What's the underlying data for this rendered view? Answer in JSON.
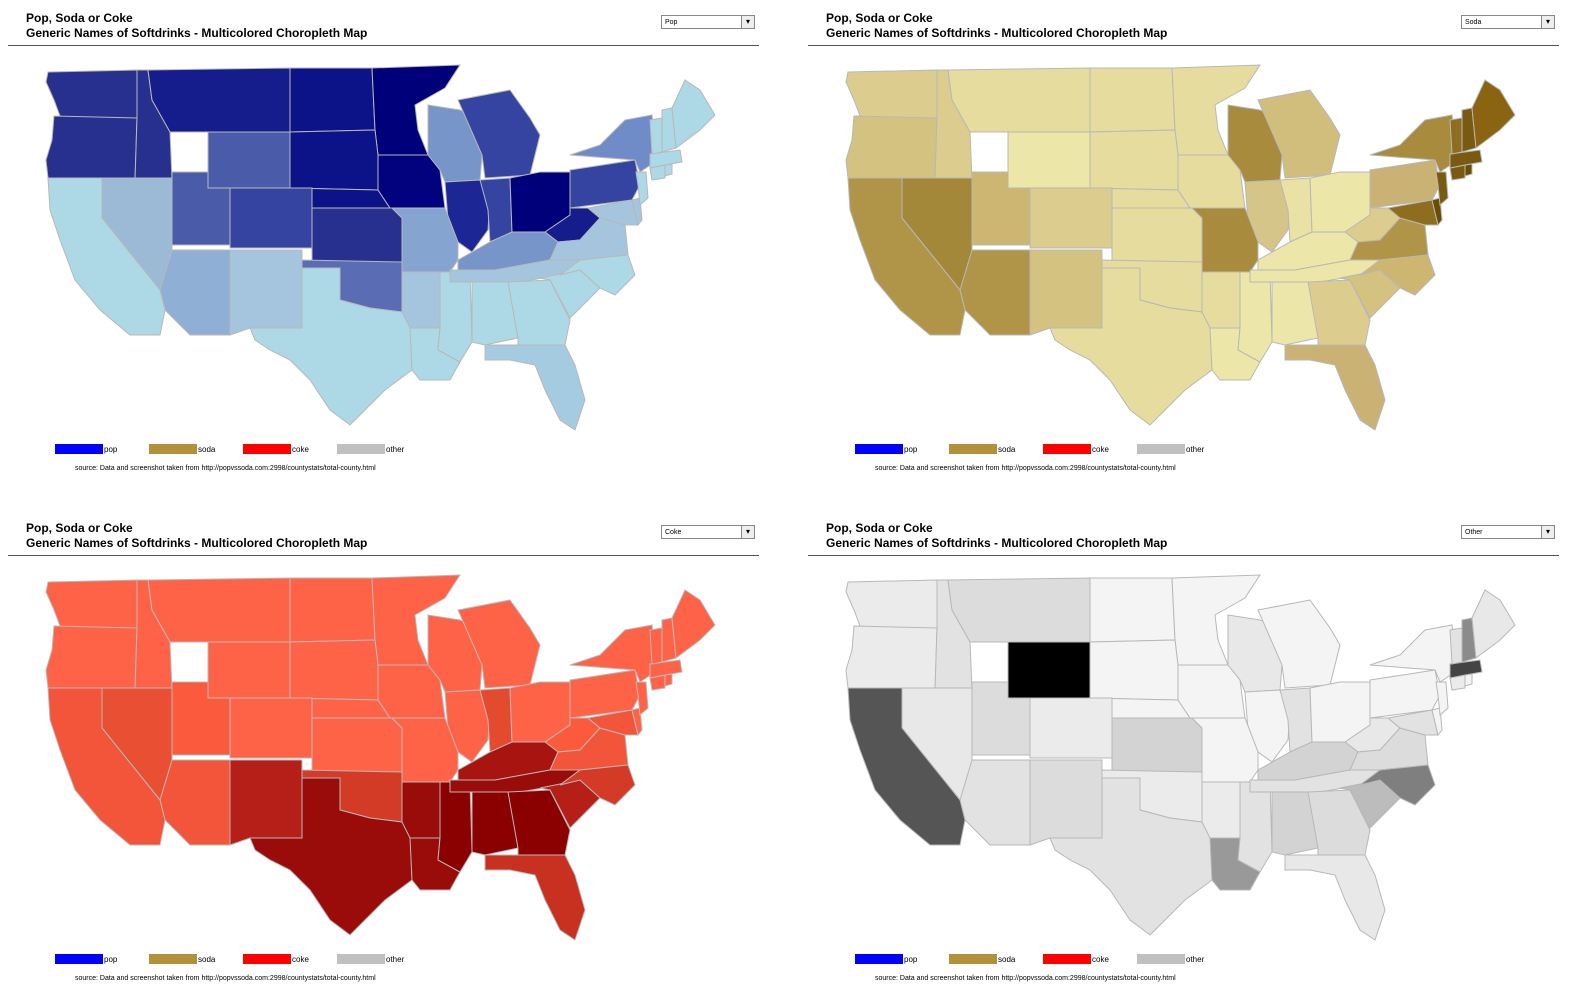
{
  "panels": [
    {
      "title_line1": "Pop, Soda or Coke",
      "title_line2": "Generic Names of Softdrinks - Multicolored Choropleth Map",
      "selected": "Pop",
      "legend": [
        {
          "label": "pop",
          "color": "#0000ff"
        },
        {
          "label": "soda",
          "color": "#b3913a"
        },
        {
          "label": "coke",
          "color": "#ff0000"
        },
        {
          "label": "other",
          "color": "#c0c0c0"
        }
      ],
      "source": "source:  Data and screenshot taken from http://popvssoda.com:2998/countystats/total-county.html",
      "states": {
        "WA": "#27308f",
        "OR": "#27308f",
        "ID": "#27308f",
        "MT": "#151c8c",
        "ND": "#0c1288",
        "MN": "#00007a",
        "SD": "#0c1288",
        "WY": "#4a5baa",
        "NE": "#0c1288",
        "IA": "#02027e",
        "WI": "#7795c8",
        "MI": "#3444a0",
        "UT": "#4a5baa",
        "CO": "#3444a0",
        "KS": "#27308f",
        "IL": "#1c2695",
        "IN": "#3444a0",
        "OH": "#00007a",
        "PA": "#3444a0",
        "NY": "#6f8bc8",
        "WV": "#151c8c",
        "NV": "#9cbad6",
        "AZ": "#90afd4",
        "NM": "#a4c5dd",
        "OK": "#5a6db4",
        "MO": "#86a4d0",
        "KY": "#7795c8",
        "VA": "#a4c5dd",
        "CA": "#add8e6",
        "TX": "#add8e6",
        "AR": "#a4c5dd",
        "LA": "#add8e6",
        "MS": "#add8e6",
        "AL": "#add8e6",
        "TN": "#a4c5dd",
        "GA": "#add8e6",
        "FL": "#a4cbe0",
        "SC": "#add8e6",
        "NC": "#add8e6",
        "MD": "#a4c5dd",
        "DE": "#a4c5dd",
        "NJ": "#add8e6",
        "CT": "#add8e6",
        "RI": "#add8e6",
        "MA": "#add8e6",
        "VT": "#add8e6",
        "NH": "#add8e6",
        "ME": "#add8e6"
      }
    },
    {
      "title_line1": "Pop, Soda or Coke",
      "title_line2": "Generic Names of Softdrinks - Multicolored Choropleth Map",
      "selected": "Soda",
      "legend": [
        {
          "label": "pop",
          "color": "#0000ff"
        },
        {
          "label": "soda",
          "color": "#b3913a"
        },
        {
          "label": "coke",
          "color": "#ff0000"
        },
        {
          "label": "other",
          "color": "#c0c0c0"
        }
      ],
      "source": "source:  Data and screenshot taken from http://popvssoda.com:2998/countystats/total-county.html",
      "states": {
        "WA": "#dccd8f",
        "OR": "#d4c280",
        "ID": "#dccd8f",
        "MT": "#e5dc9e",
        "ND": "#e5dc9e",
        "MN": "#e5dc9e",
        "SD": "#e5dc9e",
        "WY": "#ece6a8",
        "NE": "#e5dc9e",
        "IA": "#e5dc9e",
        "WI": "#a98b3e",
        "MI": "#d2be7c",
        "UT": "#cdb671",
        "CO": "#dccd8f",
        "KS": "#e5dc9e",
        "IL": "#d6c588",
        "IN": "#e9e2a4",
        "OH": "#ece6a8",
        "PA": "#c9b274",
        "NY": "#a98b3e",
        "WV": "#dccd8f",
        "NV": "#a3883a",
        "AZ": "#b09549",
        "NM": "#d4c280",
        "OK": "#e5dc9e",
        "MO": "#a98b3e",
        "KY": "#ece6a8",
        "VA": "#b09549",
        "CA": "#b09549",
        "TX": "#e5dc9e",
        "AR": "#e5dc9e",
        "LA": "#ece6a8",
        "MS": "#ece6a8",
        "AL": "#ece6a8",
        "TN": "#ece6a8",
        "GA": "#dccd8f",
        "FL": "#c9b274",
        "SC": "#d4c280",
        "NC": "#cdb671",
        "MD": "#8f6d1f",
        "DE": "#6b4c00",
        "NJ": "#7a5a10",
        "CT": "#7a5a10",
        "RI": "#6b4c00",
        "MA": "#7a5a10",
        "VT": "#8f6d1f",
        "NH": "#7a5a10",
        "ME": "#8a6410"
      }
    },
    {
      "title_line1": "Pop, Soda or Coke",
      "title_line2": "Generic Names of Softdrinks - Multicolored Choropleth Map",
      "selected": "Coke",
      "legend": [
        {
          "label": "pop",
          "color": "#0000ff"
        },
        {
          "label": "soda",
          "color": "#b3913a"
        },
        {
          "label": "coke",
          "color": "#ff0000"
        },
        {
          "label": "other",
          "color": "#c0c0c0"
        }
      ],
      "source": "source:  Data and screenshot taken from http://popvssoda.com:2998/countystats/total-county.html",
      "states": {
        "WA": "#ff6347",
        "OR": "#ff6347",
        "ID": "#ff6347",
        "MT": "#ff6347",
        "ND": "#ff6347",
        "MN": "#ff6347",
        "SD": "#ff6347",
        "WY": "#ff6347",
        "NE": "#ff6347",
        "IA": "#ff6347",
        "WI": "#ff6347",
        "MI": "#ff6347",
        "UT": "#fb5a3c",
        "CO": "#ff6347",
        "KS": "#ff6347",
        "IL": "#ff6347",
        "IN": "#e34a2e",
        "OH": "#ff6347",
        "PA": "#ff6347",
        "NY": "#ff6347",
        "WV": "#fb5a3c",
        "NV": "#e84f33",
        "AZ": "#f2553a",
        "NM": "#b51f18",
        "OK": "#d33b26",
        "MO": "#ff6347",
        "KY": "#a8140f",
        "VA": "#f2553a",
        "CA": "#f2553a",
        "TX": "#9a0c0a",
        "AR": "#9a0c0a",
        "LA": "#9a0c0a",
        "MS": "#8b0000",
        "AL": "#8b0000",
        "TN": "#9a0c0a",
        "GA": "#8b0000",
        "FL": "#c8301f",
        "SC": "#b51f18",
        "NC": "#d33b26",
        "MD": "#f2553a",
        "DE": "#ff6347",
        "NJ": "#ff6347",
        "CT": "#ff6347",
        "RI": "#ff6347",
        "MA": "#ff6347",
        "VT": "#ff6347",
        "NH": "#ff6347",
        "ME": "#ff6347"
      }
    },
    {
      "title_line1": "Pop, Soda or Coke",
      "title_line2": "Generic Names of Softdrinks - Multicolored Choropleth Map",
      "selected": "Other",
      "legend": [
        {
          "label": "pop",
          "color": "#0000ff"
        },
        {
          "label": "soda",
          "color": "#b3913a"
        },
        {
          "label": "coke",
          "color": "#ff0000"
        },
        {
          "label": "other",
          "color": "#c0c0c0"
        }
      ],
      "source": "source:  Data and screenshot taken from http://popvssoda.com:2998/countystats/total-county.html",
      "states": {
        "WA": "#ebebeb",
        "OR": "#ebebeb",
        "ID": "#e2e2e2",
        "MT": "#dcdcdc",
        "ND": "#f4f4f4",
        "MN": "#f4f4f4",
        "SD": "#f4f4f4",
        "WY": "#000000",
        "NE": "#f4f4f4",
        "IA": "#f4f4f4",
        "WI": "#e8e8e8",
        "MI": "#f4f4f4",
        "UT": "#dcdcdc",
        "CO": "#ebebeb",
        "KS": "#d3d3d3",
        "IL": "#f4f4f4",
        "IN": "#e2e2e2",
        "OH": "#f4f4f4",
        "PA": "#f4f4f4",
        "NY": "#f4f4f4",
        "WV": "#e8e8e8",
        "NV": "#e8e8e8",
        "AZ": "#e2e2e2",
        "NM": "#dcdcdc",
        "OK": "#ebebeb",
        "MO": "#f4f4f4",
        "KY": "#d3d3d3",
        "VA": "#dcdcdc",
        "CA": "#555555",
        "TX": "#e2e2e2",
        "AR": "#ebebeb",
        "LA": "#999999",
        "MS": "#e2e2e2",
        "AL": "#d3d3d3",
        "TN": "#e2e2e2",
        "GA": "#dcdcdc",
        "FL": "#e8e8e8",
        "SC": "#bcbcbc",
        "NC": "#7f7f7f",
        "MD": "#e2e2e2",
        "DE": "#f4f4f4",
        "NJ": "#f4f4f4",
        "CT": "#ebebeb",
        "RI": "#f4f4f4",
        "MA": "#444444",
        "VT": "#e2e2e2",
        "NH": "#8b8b8b",
        "ME": "#e8e8e8"
      }
    }
  ]
}
